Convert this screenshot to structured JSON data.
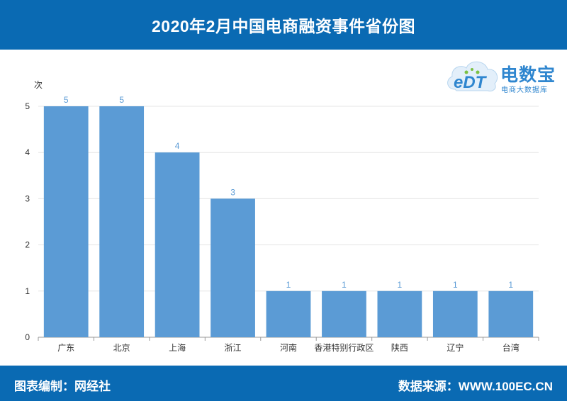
{
  "header": {
    "title": "2020年2月中国电商融资事件省份图"
  },
  "logo": {
    "name": "电数宝",
    "tagline": "电商大数据库",
    "mark": "eDT"
  },
  "footer": {
    "editor": "图表编制：网经社",
    "source": "数据来源：WWW.100EC.CN"
  },
  "colors": {
    "bar": "#5b9bd5",
    "header": "#0a6ab3",
    "grid": "#e6e6e6",
    "axis": "#999999"
  },
  "chart_data": {
    "type": "bar",
    "title": "2020年2月中国电商融资事件省份图",
    "ylabel": "次",
    "xlabel": "",
    "categories": [
      "广东",
      "北京",
      "上海",
      "浙江",
      "河南",
      "香港特别行政区",
      "陕西",
      "辽宁",
      "台湾"
    ],
    "values": [
      5,
      5,
      4,
      3,
      1,
      1,
      1,
      1,
      1
    ],
    "ylim": [
      0,
      5
    ],
    "yticks": [
      0,
      1,
      2,
      3,
      4,
      5
    ],
    "grid": true,
    "legend": "none",
    "data_labels": true
  }
}
